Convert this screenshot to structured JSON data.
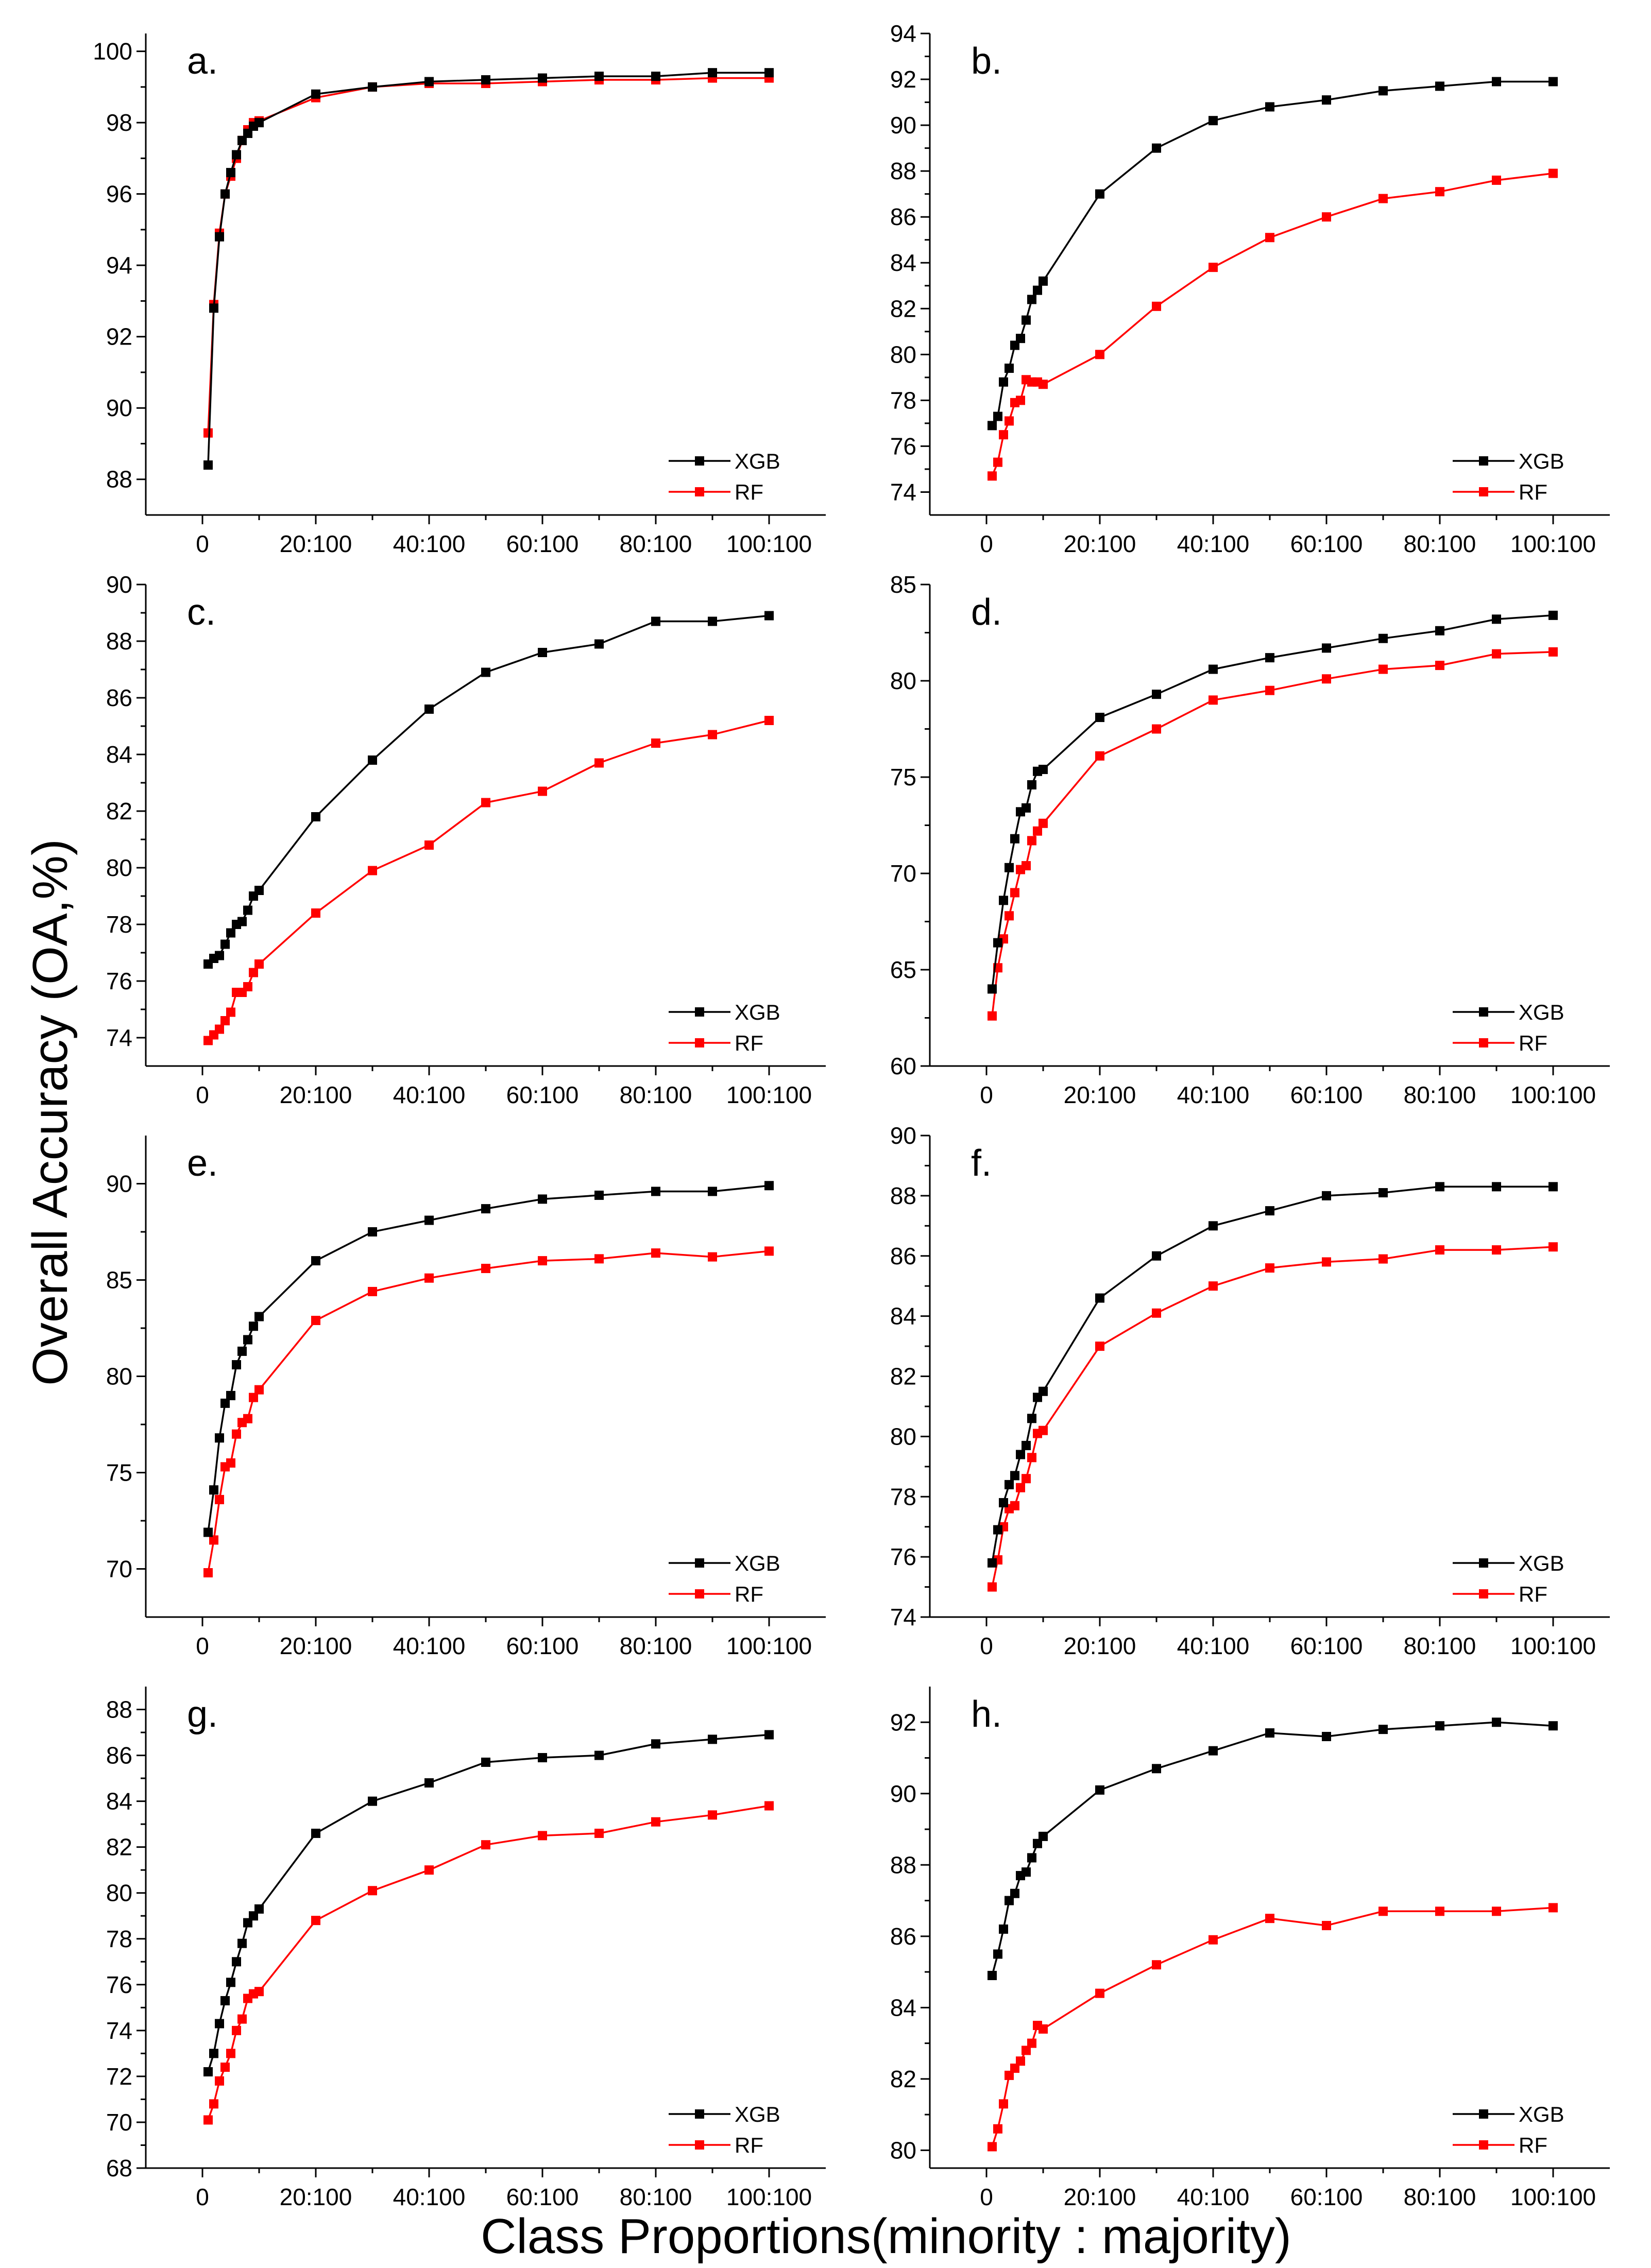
{
  "figure": {
    "ylabel": "Overall Accuracy (OA,%)",
    "xlabel": "Class Proportions(minority : majority)",
    "colors": {
      "XGB": "#000000",
      "RF": "#ff0000"
    }
  },
  "chart_data": [
    {
      "type": "line",
      "panel": "a.",
      "ylim": [
        87,
        100.5
      ],
      "yticks": [
        88,
        90,
        92,
        94,
        96,
        98,
        100
      ],
      "yticklabels": [
        "88",
        "90",
        "92",
        "94",
        "96",
        "98",
        "100"
      ],
      "xlim": [
        -10,
        110
      ],
      "xticks": [
        0,
        20,
        40,
        60,
        80,
        100
      ],
      "xticklabels": [
        "0",
        "20:100",
        "40:100",
        "60:100",
        "80:100",
        "100:100"
      ],
      "x": [
        1,
        2,
        3,
        4,
        5,
        6,
        7,
        8,
        9,
        10,
        20,
        30,
        40,
        50,
        60,
        70,
        80,
        90,
        100
      ],
      "series": [
        {
          "name": "XGB",
          "color": "#000000",
          "values": [
            88.4,
            92.8,
            94.8,
            96.0,
            96.6,
            97.1,
            97.5,
            97.7,
            97.9,
            98.0,
            98.8,
            99.0,
            99.15,
            99.2,
            99.25,
            99.3,
            99.3,
            99.4,
            99.4
          ]
        },
        {
          "name": "RF",
          "color": "#ff0000",
          "values": [
            89.3,
            92.9,
            94.9,
            96.0,
            96.5,
            97.0,
            97.5,
            97.8,
            98.0,
            98.05,
            98.7,
            99.0,
            99.1,
            99.1,
            99.15,
            99.2,
            99.2,
            99.25,
            99.25
          ]
        }
      ]
    },
    {
      "type": "line",
      "panel": "b.",
      "ylim": [
        73,
        94
      ],
      "yticks": [
        74,
        76,
        78,
        80,
        82,
        84,
        86,
        88,
        90,
        92,
        94
      ],
      "yticklabels": [
        "74",
        "76",
        "78",
        "80",
        "82",
        "84",
        "86",
        "88",
        "90",
        "92",
        "94"
      ],
      "xlim": [
        -10,
        110
      ],
      "xticks": [
        0,
        20,
        40,
        60,
        80,
        100
      ],
      "xticklabels": [
        "0",
        "20:100",
        "40:100",
        "60:100",
        "80:100",
        "100:100"
      ],
      "x": [
        1,
        2,
        3,
        4,
        5,
        6,
        7,
        8,
        9,
        10,
        20,
        30,
        40,
        50,
        60,
        70,
        80,
        90,
        100
      ],
      "series": [
        {
          "name": "XGB",
          "color": "#000000",
          "values": [
            76.9,
            77.3,
            78.8,
            79.4,
            80.4,
            80.7,
            81.5,
            82.4,
            82.8,
            83.2,
            87.0,
            89.0,
            90.2,
            90.8,
            91.1,
            91.5,
            91.7,
            91.9,
            91.9
          ]
        },
        {
          "name": "RF",
          "color": "#ff0000",
          "values": [
            74.7,
            75.3,
            76.5,
            77.1,
            77.9,
            78.0,
            78.9,
            78.8,
            78.8,
            78.7,
            80.0,
            82.1,
            83.8,
            85.1,
            86.0,
            86.8,
            87.1,
            87.6,
            87.9
          ]
        }
      ]
    },
    {
      "type": "line",
      "panel": "c.",
      "ylim": [
        73,
        90
      ],
      "yticks": [
        74,
        76,
        78,
        80,
        82,
        84,
        86,
        88,
        90
      ],
      "yticklabels": [
        "74",
        "76",
        "78",
        "80",
        "82",
        "84",
        "86",
        "88",
        "90"
      ],
      "xlim": [
        -10,
        110
      ],
      "xticks": [
        0,
        20,
        40,
        60,
        80,
        100
      ],
      "xticklabels": [
        "0",
        "20:100",
        "40:100",
        "60:100",
        "80:100",
        "100:100"
      ],
      "x": [
        1,
        2,
        3,
        4,
        5,
        6,
        7,
        8,
        9,
        10,
        20,
        30,
        40,
        50,
        60,
        70,
        80,
        90,
        100
      ],
      "series": [
        {
          "name": "XGB",
          "color": "#000000",
          "values": [
            76.6,
            76.8,
            76.9,
            77.3,
            77.7,
            78.0,
            78.1,
            78.5,
            79.0,
            79.2,
            81.8,
            83.8,
            85.6,
            86.9,
            87.6,
            87.9,
            88.7,
            88.7,
            88.9
          ]
        },
        {
          "name": "RF",
          "color": "#ff0000",
          "values": [
            73.9,
            74.1,
            74.3,
            74.6,
            74.9,
            75.6,
            75.6,
            75.8,
            76.3,
            76.6,
            78.4,
            79.9,
            80.8,
            82.3,
            82.7,
            83.7,
            84.4,
            84.7,
            85.2
          ]
        }
      ]
    },
    {
      "type": "line",
      "panel": "d.",
      "ylim": [
        60,
        85
      ],
      "yticks": [
        60,
        65,
        70,
        75,
        80,
        85
      ],
      "yticklabels": [
        "60",
        "65",
        "70",
        "75",
        "80",
        "85"
      ],
      "xlim": [
        -10,
        110
      ],
      "xticks": [
        0,
        20,
        40,
        60,
        80,
        100
      ],
      "xticklabels": [
        "0",
        "20:100",
        "40:100",
        "60:100",
        "80:100",
        "100:100"
      ],
      "x": [
        1,
        2,
        3,
        4,
        5,
        6,
        7,
        8,
        9,
        10,
        20,
        30,
        40,
        50,
        60,
        70,
        80,
        90,
        100
      ],
      "series": [
        {
          "name": "XGB",
          "color": "#000000",
          "values": [
            64.0,
            66.4,
            68.6,
            70.3,
            71.8,
            73.2,
            73.4,
            74.6,
            75.3,
            75.4,
            78.1,
            79.3,
            80.6,
            81.2,
            81.7,
            82.2,
            82.6,
            83.2,
            83.4
          ]
        },
        {
          "name": "RF",
          "color": "#ff0000",
          "values": [
            62.6,
            65.1,
            66.6,
            67.8,
            69.0,
            70.2,
            70.4,
            71.7,
            72.2,
            72.6,
            76.1,
            77.5,
            79.0,
            79.5,
            80.1,
            80.6,
            80.8,
            81.4,
            81.5
          ]
        }
      ]
    },
    {
      "type": "line",
      "panel": "e.",
      "ylim": [
        67.5,
        92.5
      ],
      "yticks": [
        70,
        75,
        80,
        85,
        90
      ],
      "yticklabels": [
        "70",
        "75",
        "80",
        "85",
        "90"
      ],
      "xlim": [
        -10,
        110
      ],
      "xticks": [
        0,
        20,
        40,
        60,
        80,
        100
      ],
      "xticklabels": [
        "0",
        "20:100",
        "40:100",
        "60:100",
        "80:100",
        "100:100"
      ],
      "x": [
        1,
        2,
        3,
        4,
        5,
        6,
        7,
        8,
        9,
        10,
        20,
        30,
        40,
        50,
        60,
        70,
        80,
        90,
        100
      ],
      "series": [
        {
          "name": "XGB",
          "color": "#000000",
          "values": [
            71.9,
            74.1,
            76.8,
            78.6,
            79.0,
            80.6,
            81.3,
            81.9,
            82.6,
            83.1,
            86.0,
            87.5,
            88.1,
            88.7,
            89.2,
            89.4,
            89.6,
            89.6,
            89.9
          ]
        },
        {
          "name": "RF",
          "color": "#ff0000",
          "values": [
            69.8,
            71.5,
            73.6,
            75.3,
            75.5,
            77.0,
            77.6,
            77.8,
            78.9,
            79.3,
            82.9,
            84.4,
            85.1,
            85.6,
            86.0,
            86.1,
            86.4,
            86.2,
            86.5
          ]
        }
      ]
    },
    {
      "type": "line",
      "panel": "f.",
      "ylim": [
        74,
        90
      ],
      "yticks": [
        74,
        76,
        78,
        80,
        82,
        84,
        86,
        88,
        90
      ],
      "yticklabels": [
        "74",
        "76",
        "78",
        "80",
        "82",
        "84",
        "86",
        "88",
        "90"
      ],
      "xlim": [
        -10,
        110
      ],
      "xticks": [
        0,
        20,
        40,
        60,
        80,
        100
      ],
      "xticklabels": [
        "0",
        "20:100",
        "40:100",
        "60:100",
        "80:100",
        "100:100"
      ],
      "x": [
        1,
        2,
        3,
        4,
        5,
        6,
        7,
        8,
        9,
        10,
        20,
        30,
        40,
        50,
        60,
        70,
        80,
        90,
        100
      ],
      "series": [
        {
          "name": "XGB",
          "color": "#000000",
          "values": [
            75.8,
            76.9,
            77.8,
            78.4,
            78.7,
            79.4,
            79.7,
            80.6,
            81.3,
            81.5,
            84.6,
            86.0,
            87.0,
            87.5,
            88.0,
            88.1,
            88.3,
            88.3,
            88.3
          ]
        },
        {
          "name": "RF",
          "color": "#ff0000",
          "values": [
            75.0,
            75.9,
            77.0,
            77.6,
            77.7,
            78.3,
            78.6,
            79.3,
            80.1,
            80.2,
            83.0,
            84.1,
            85.0,
            85.6,
            85.8,
            85.9,
            86.2,
            86.2,
            86.3
          ]
        }
      ]
    },
    {
      "type": "line",
      "panel": "g.",
      "ylim": [
        68,
        89
      ],
      "yticks": [
        68,
        70,
        72,
        74,
        76,
        78,
        80,
        82,
        84,
        86,
        88
      ],
      "yticklabels": [
        "68",
        "70",
        "72",
        "74",
        "76",
        "78",
        "80",
        "82",
        "84",
        "86",
        "88"
      ],
      "xlim": [
        -10,
        110
      ],
      "xticks": [
        0,
        20,
        40,
        60,
        80,
        100
      ],
      "xticklabels": [
        "0",
        "20:100",
        "40:100",
        "60:100",
        "80:100",
        "100:100"
      ],
      "x": [
        1,
        2,
        3,
        4,
        5,
        6,
        7,
        8,
        9,
        10,
        20,
        30,
        40,
        50,
        60,
        70,
        80,
        90,
        100
      ],
      "series": [
        {
          "name": "XGB",
          "color": "#000000",
          "values": [
            72.2,
            73.0,
            74.3,
            75.3,
            76.1,
            77.0,
            77.8,
            78.7,
            79.0,
            79.3,
            82.6,
            84.0,
            84.8,
            85.7,
            85.9,
            86.0,
            86.5,
            86.7,
            86.9
          ]
        },
        {
          "name": "RF",
          "color": "#ff0000",
          "values": [
            70.1,
            70.8,
            71.8,
            72.4,
            73.0,
            74.0,
            74.5,
            75.4,
            75.6,
            75.7,
            78.8,
            80.1,
            81.0,
            82.1,
            82.5,
            82.6,
            83.1,
            83.4,
            83.8
          ]
        }
      ]
    },
    {
      "type": "line",
      "panel": "h.",
      "ylim": [
        79.5,
        93
      ],
      "yticks": [
        80,
        82,
        84,
        86,
        88,
        90,
        92
      ],
      "yticklabels": [
        "80",
        "82",
        "84",
        "86",
        "88",
        "90",
        "92"
      ],
      "xlim": [
        -10,
        110
      ],
      "xticks": [
        0,
        20,
        40,
        60,
        80,
        100
      ],
      "xticklabels": [
        "0",
        "20:100",
        "40:100",
        "60:100",
        "80:100",
        "100:100"
      ],
      "x": [
        1,
        2,
        3,
        4,
        5,
        6,
        7,
        8,
        9,
        10,
        20,
        30,
        40,
        50,
        60,
        70,
        80,
        90,
        100
      ],
      "series": [
        {
          "name": "XGB",
          "color": "#000000",
          "values": [
            84.9,
            85.5,
            86.2,
            87.0,
            87.2,
            87.7,
            87.8,
            88.2,
            88.6,
            88.8,
            90.1,
            90.7,
            91.2,
            91.7,
            91.6,
            91.8,
            91.9,
            92.0,
            91.9
          ]
        },
        {
          "name": "RF",
          "color": "#ff0000",
          "values": [
            80.1,
            80.6,
            81.3,
            82.1,
            82.3,
            82.5,
            82.8,
            83.0,
            83.5,
            83.4,
            84.4,
            85.2,
            85.9,
            86.5,
            86.3,
            86.7,
            86.7,
            86.7,
            86.8
          ]
        }
      ]
    }
  ]
}
